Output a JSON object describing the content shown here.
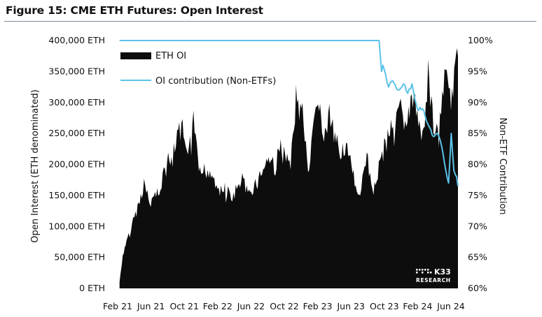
{
  "figure": {
    "title": "Figure 15: CME ETH Futures: Open Interest"
  },
  "watermark": {
    "main": "K33",
    "sub": "RESEARCH"
  },
  "colors": {
    "area": "#0d0d0d",
    "line": "#5bc2e7",
    "title_rule": "#7a8a9a",
    "background": "#ffffff"
  },
  "chart_data": {
    "type": "area",
    "title": "Figure 15: CME ETH Futures: Open Interest",
    "ylabel": "Open Interest (ETH denominated)",
    "ylabel_right": "Non-ETF Contribution",
    "x_ticks": [
      "Feb 21",
      "Jun 21",
      "Oct 21",
      "Feb 22",
      "Jun 22",
      "Oct 22",
      "Feb 23",
      "Jun 23",
      "Oct 23",
      "Feb 24",
      "Jun 24"
    ],
    "y_ticks": [
      "0 ETH",
      "50,000 ETH",
      "100,000 ETH",
      "150,000 ETH",
      "200,000 ETH",
      "250,000 ETH",
      "300,000 ETH",
      "350,000 ETH",
      "400,000 ETH"
    ],
    "y2_ticks": [
      "60%",
      "65%",
      "70%",
      "75%",
      "80%",
      "85%",
      "90%",
      "95%",
      "100%"
    ],
    "ylim": [
      0,
      400000
    ],
    "y2lim": [
      60,
      100
    ],
    "xlim": [
      "2021-02-01",
      "2024-07-20"
    ],
    "grid": false,
    "legend_position": "top-left",
    "series": [
      {
        "name": "ETH OI",
        "type": "area",
        "axis": "left",
        "x": [
          "2021-02-08",
          "2021-02-20",
          "2021-03-10",
          "2021-03-31",
          "2021-04-20",
          "2021-05-10",
          "2021-05-31",
          "2021-06-20",
          "2021-07-10",
          "2021-07-31",
          "2021-08-20",
          "2021-09-10",
          "2021-09-30",
          "2021-10-20",
          "2021-11-10",
          "2021-11-30",
          "2021-12-20",
          "2022-01-10",
          "2022-01-30",
          "2022-02-20",
          "2022-03-10",
          "2022-03-30",
          "2022-04-20",
          "2022-05-10",
          "2022-05-31",
          "2022-06-20",
          "2022-07-10",
          "2022-07-31",
          "2022-08-20",
          "2022-09-10",
          "2022-09-30",
          "2022-10-20",
          "2022-11-10",
          "2022-11-30",
          "2022-12-20",
          "2023-01-10",
          "2023-01-30",
          "2023-02-20",
          "2023-03-10",
          "2023-03-30",
          "2023-04-20",
          "2023-05-10",
          "2023-05-31",
          "2023-06-20",
          "2023-07-10",
          "2023-07-31",
          "2023-08-20",
          "2023-09-10",
          "2023-09-30",
          "2023-10-20",
          "2023-11-10",
          "2023-11-30",
          "2023-12-20",
          "2024-01-10",
          "2024-01-30",
          "2024-02-20",
          "2024-03-10",
          "2024-03-31",
          "2024-04-20",
          "2024-05-10",
          "2024-05-31",
          "2024-06-20",
          "2024-07-10",
          "2024-07-20"
        ],
        "y": [
          10000,
          50000,
          85000,
          110000,
          135000,
          170000,
          140000,
          150000,
          165000,
          210000,
          200000,
          245000,
          255000,
          200000,
          280000,
          180000,
          190000,
          190000,
          175000,
          155000,
          165000,
          145000,
          160000,
          175000,
          150000,
          165000,
          175000,
          200000,
          210000,
          195000,
          235000,
          205000,
          220000,
          325000,
          290000,
          175000,
          255000,
          305000,
          235000,
          280000,
          235000,
          225000,
          230000,
          195000,
          150000,
          175000,
          215000,
          160000,
          195000,
          225000,
          260000,
          280000,
          290000,
          245000,
          320000,
          275000,
          250000,
          345000,
          265000,
          240000,
          355000,
          300000,
          345000,
          375000
        ]
      },
      {
        "name": "OI contribution (Non-ETFs)",
        "type": "line",
        "axis": "right",
        "x": [
          "2021-02-08",
          "2023-10-01",
          "2023-10-10",
          "2023-10-15",
          "2023-10-25",
          "2023-11-05",
          "2023-11-20",
          "2023-12-10",
          "2023-12-31",
          "2024-01-15",
          "2024-01-31",
          "2024-02-20",
          "2024-03-10",
          "2024-03-25",
          "2024-04-05",
          "2024-04-20",
          "2024-05-05",
          "2024-05-20",
          "2024-06-05",
          "2024-06-15",
          "2024-06-25",
          "2024-07-05",
          "2024-07-15",
          "2024-07-20"
        ],
        "y": [
          100,
          100,
          95,
          96,
          94.5,
          92.5,
          93.5,
          92,
          93,
          91.5,
          93,
          89,
          89,
          87,
          86,
          84.5,
          85,
          83,
          79,
          77,
          85,
          79,
          78,
          76.5
        ]
      }
    ]
  }
}
